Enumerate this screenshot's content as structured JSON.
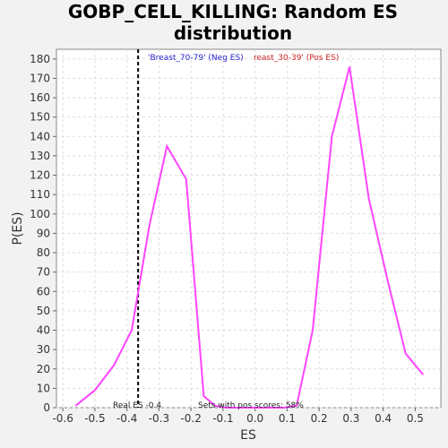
{
  "chart_data": {
    "type": "line",
    "title_lines": [
      "GOBP_CELL_KILLING: Random ES",
      "distribution"
    ],
    "xlabel": "ES",
    "ylabel": "P(ES)",
    "xlim": [
      -0.62,
      0.58
    ],
    "ylim": [
      0,
      185
    ],
    "xticks": [
      -0.6,
      -0.5,
      -0.4,
      -0.3,
      -0.2,
      -0.1,
      0.0,
      0.1,
      0.2,
      0.3,
      0.4,
      0.5
    ],
    "xtick_labels": [
      "-0.6",
      "-0.5",
      "-0.4",
      "-0.3",
      "-0.2",
      "-0.1",
      "0.0",
      "0.1",
      "0.2",
      "0.3",
      "0.4",
      "0.5"
    ],
    "yticks": [
      0,
      10,
      20,
      30,
      40,
      50,
      60,
      70,
      80,
      90,
      100,
      110,
      120,
      130,
      140,
      150,
      160,
      170,
      180
    ],
    "grid": true,
    "line_color": "#ff44ff",
    "series": [
      {
        "x": [
          -0.56,
          -0.5,
          -0.44,
          -0.385,
          -0.33,
          -0.275,
          -0.215,
          -0.16,
          -0.125,
          -0.09,
          -0.04,
          0.0,
          0.05,
          0.09,
          0.13,
          0.18,
          0.24,
          0.295,
          0.355,
          0.415,
          0.47,
          0.525
        ],
        "values": [
          1,
          9,
          22,
          40,
          94,
          135,
          118,
          6,
          1,
          0,
          0,
          0,
          0,
          0,
          1,
          40,
          140,
          176,
          108,
          65,
          28,
          17
        ]
      }
    ],
    "real_es": -0.365,
    "real_es_label": "Real ES -0.4",
    "pos_scores_label": "Sets with pos scores: 58%",
    "legend": [
      {
        "text": "'Breast_70-79' (Neg ES)",
        "color": "#2222cc"
      },
      {
        "text": "reast_30-39' (Pos ES)",
        "color": "#cc2222"
      }
    ]
  }
}
